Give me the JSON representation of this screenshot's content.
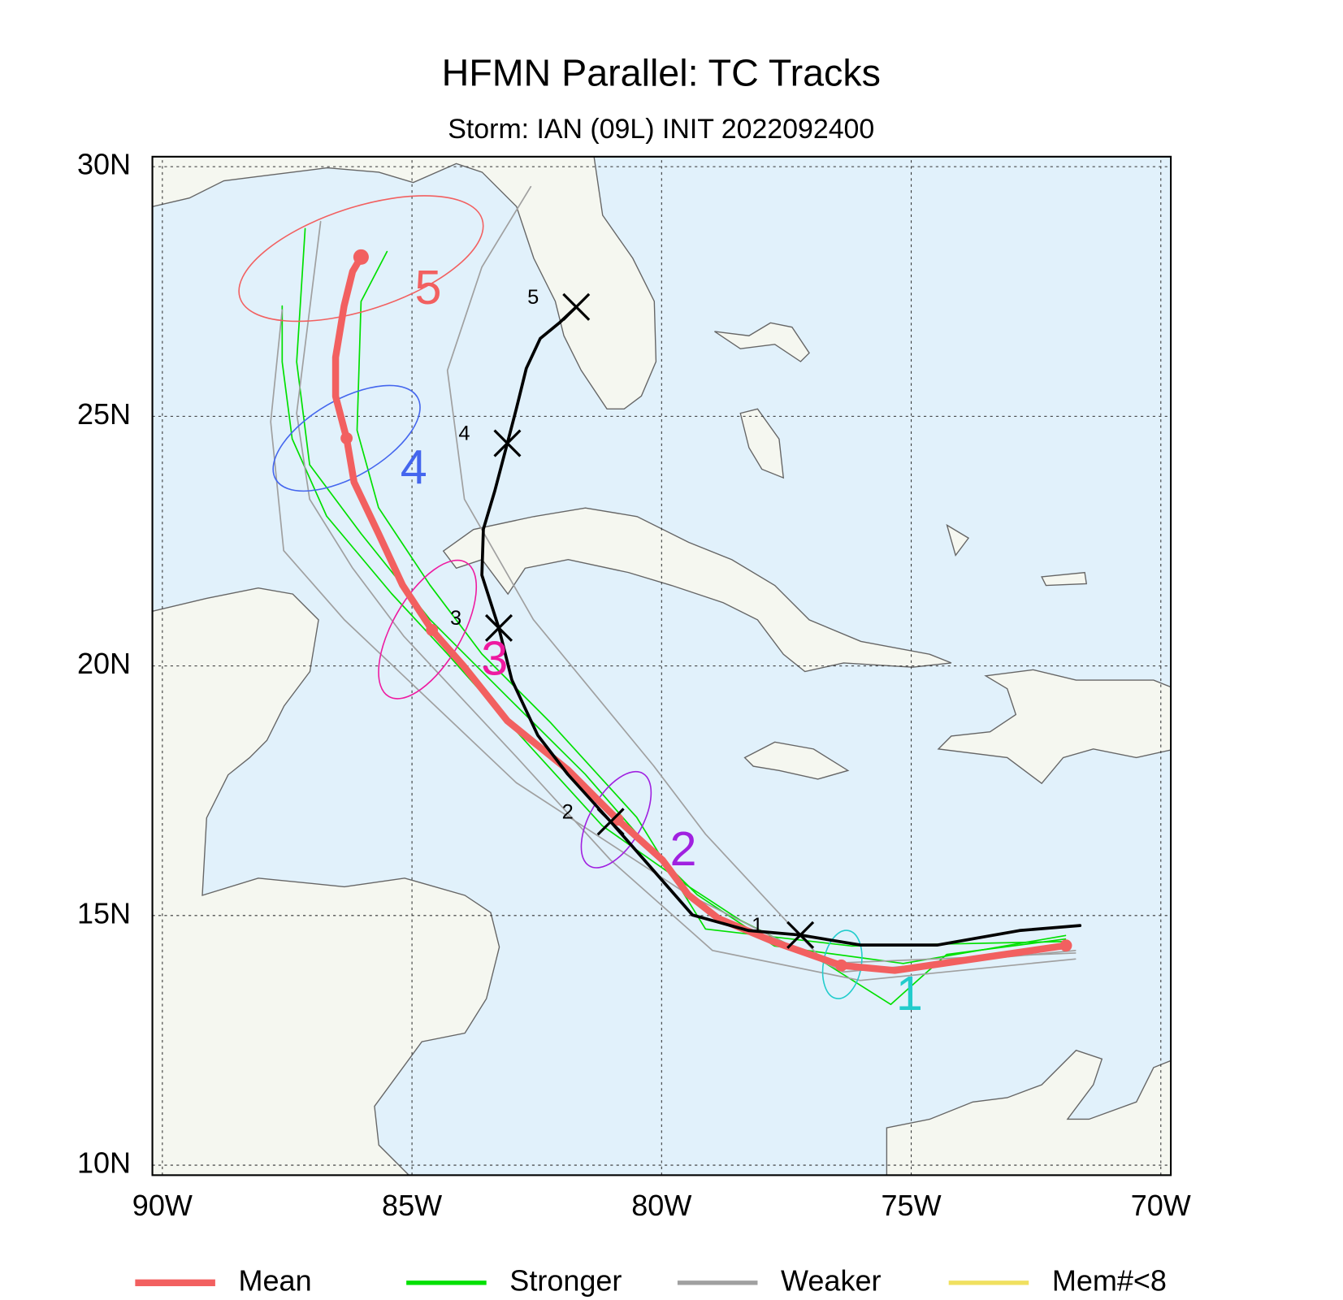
{
  "chart_data": {
    "type": "track",
    "title": "HFMN Parallel: TC Tracks",
    "subtitle": "Storm: IAN (09L) INIT 2022092400",
    "xlim": [
      -90.2,
      -69.8
    ],
    "ylim": [
      9.8,
      30.2
    ],
    "xticks": [
      {
        "value": -90,
        "label": "90W"
      },
      {
        "value": -85,
        "label": "85W"
      },
      {
        "value": -80,
        "label": "80W"
      },
      {
        "value": -75,
        "label": "75W"
      },
      {
        "value": -70,
        "label": "70W"
      }
    ],
    "yticks": [
      {
        "value": 10,
        "label": "10N"
      },
      {
        "value": 15,
        "label": "15N"
      },
      {
        "value": 20,
        "label": "20N"
      },
      {
        "value": 25,
        "label": "25N"
      },
      {
        "value": 30,
        "label": "30N"
      }
    ],
    "grid": true,
    "legend": [
      {
        "name": "Mean",
        "color": "#f26060"
      },
      {
        "name": "Stronger",
        "color": "#00e000"
      },
      {
        "name": "Weaker",
        "color": "#a0a0a0"
      },
      {
        "name": "Mem#<8",
        "color": "#f0e060"
      }
    ],
    "series": [
      {
        "name": "Mean",
        "color": "#f26060",
        "x": [
          -71.9,
          -75.33,
          -76.4,
          -77.74,
          -78.86,
          -79.47,
          -79.98,
          -80.88,
          -81.88,
          -83.09,
          -83.95,
          -84.6,
          -85.19,
          -85.67,
          -86.16,
          -86.31,
          -86.53,
          -86.53,
          -86.36,
          -86.19,
          -86.02
        ],
        "y": [
          14.4,
          13.9,
          14.0,
          14.47,
          14.94,
          15.42,
          16.11,
          16.92,
          17.92,
          18.9,
          19.98,
          20.72,
          21.62,
          22.65,
          23.68,
          24.56,
          25.4,
          26.18,
          27.21,
          27.9,
          28.19
        ]
      },
      {
        "name": "Stronger",
        "color": "#00e000",
        "x": [
          -71.91,
          -74.29,
          -75.41,
          -76.71,
          -78.43,
          -79.47,
          -81.19,
          -82.91,
          -84.29,
          -85.41,
          -86.71,
          -87.4,
          -87.6,
          -87.6
        ],
        "y": [
          14.53,
          14.22,
          13.22,
          14.04,
          14.91,
          15.59,
          16.8,
          18.69,
          20.24,
          21.45,
          23.0,
          24.55,
          26.09,
          27.21
        ]
      },
      {
        "name": "Stronger",
        "color": "#00e000",
        "x": [
          -71.91,
          -75.16,
          -77.74,
          -79.29,
          -80.33,
          -81.53,
          -83.09,
          -84.64,
          -86.02,
          -87.05,
          -87.31,
          -87.14
        ],
        "y": [
          14.6,
          14.04,
          14.39,
          15.42,
          16.45,
          17.83,
          19.38,
          20.93,
          22.65,
          24.03,
          26.09,
          28.76
        ]
      },
      {
        "name": "Stronger",
        "color": "#00e000",
        "x": [
          -71.91,
          -76.19,
          -79.12,
          -80.5,
          -82.22,
          -83.6,
          -84.64,
          -85.67,
          -86.1,
          -86.02,
          -85.5
        ],
        "y": [
          14.48,
          14.39,
          14.73,
          16.97,
          18.86,
          20.24,
          21.62,
          23.17,
          24.72,
          27.3,
          28.3
        ]
      },
      {
        "name": "Weaker",
        "color": "#a0a0a0",
        "x": [
          -71.71,
          -76.02,
          -78.98,
          -81.02,
          -82.91,
          -85.16,
          -86.19,
          -87.05,
          -87.31,
          -86.83
        ],
        "y": [
          14.13,
          13.7,
          14.3,
          16.11,
          18.18,
          20.59,
          21.96,
          23.34,
          25.06,
          28.9
        ]
      },
      {
        "name": "Weaker",
        "color": "#a0a0a0",
        "x": [
          -71.71,
          -76.71,
          -79.12,
          -80.16,
          -82.57,
          -83.95,
          -84.29,
          -83.6,
          -82.62
        ],
        "y": [
          14.25,
          14.04,
          16.63,
          18.0,
          20.93,
          23.34,
          25.92,
          27.99,
          29.6
        ]
      },
      {
        "name": "Weaker",
        "color": "#a0a0a0",
        "x": [
          -71.71,
          -76.36,
          -79.47,
          -82.91,
          -86.36,
          -87.57,
          -87.83,
          -87.6
        ],
        "y": [
          14.3,
          13.87,
          15.42,
          17.66,
          20.93,
          22.31,
          24.89,
          27.13
        ]
      }
    ],
    "observed": {
      "color": "#000000",
      "x": [
        -71.62,
        -72.83,
        -74.47,
        -76.02,
        -77.22,
        -78.26,
        -79.38,
        -80.16,
        -81.02,
        -81.88,
        -82.48,
        -83.0,
        -83.26,
        -83.6,
        -83.57,
        -83.34,
        -83.09,
        -82.91,
        -82.71,
        -82.43,
        -82.05,
        -81.71
      ],
      "y": [
        14.8,
        14.7,
        14.41,
        14.41,
        14.61,
        14.7,
        15.01,
        15.9,
        16.88,
        17.83,
        18.61,
        19.72,
        20.76,
        21.82,
        22.74,
        23.51,
        24.46,
        25.15,
        25.96,
        26.56,
        26.87,
        27.19
      ],
      "day_labels": [
        "1",
        "2",
        "3",
        "4",
        "5"
      ]
    },
    "ellipses": [
      {
        "label": "1",
        "color": "#22cccc",
        "x": -76.38,
        "y": 14.02,
        "rx": 0.38,
        "ry": 0.69,
        "angle": 10
      },
      {
        "label": "2",
        "color": "#a020e0",
        "x": -80.91,
        "y": 16.92,
        "rx": 0.52,
        "ry": 1.07,
        "angle": 30
      },
      {
        "label": "3",
        "color": "#ee1aa0",
        "x": -84.69,
        "y": 20.73,
        "rx": 0.69,
        "ry": 1.55,
        "angle": 30
      },
      {
        "label": "4",
        "color": "#4466ee",
        "x": -86.31,
        "y": 24.56,
        "rx": 1.64,
        "ry": 0.77,
        "angle": -30
      },
      {
        "label": "5",
        "color": "#f26060",
        "x": -86.02,
        "y": 28.16,
        "rx": 2.55,
        "ry": 1.03,
        "angle": -18
      }
    ]
  }
}
